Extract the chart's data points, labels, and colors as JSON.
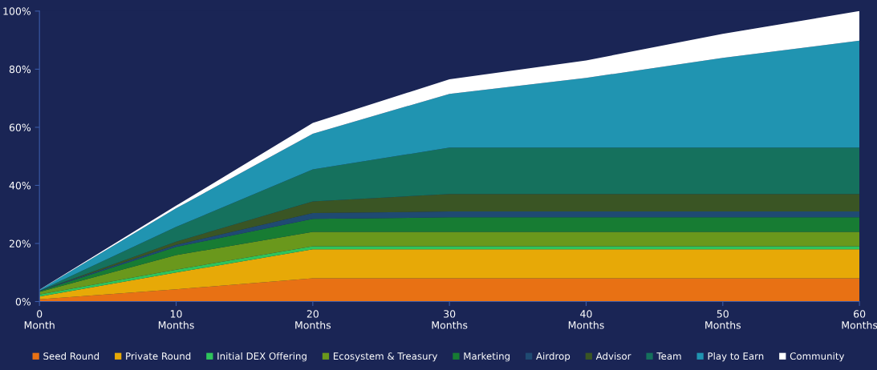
{
  "chart_data": {
    "type": "area",
    "stacked": true,
    "legend": "bottom",
    "grid": false,
    "x": [
      0,
      10,
      20,
      30,
      40,
      50,
      60
    ],
    "xlim": [
      0,
      60
    ],
    "xticks": [
      {
        "value": 0,
        "label": "0\nMonth"
      },
      {
        "value": 10,
        "label": "10\nMonths"
      },
      {
        "value": 20,
        "label": "20\nMonths"
      },
      {
        "value": 30,
        "label": "30\nMonths"
      },
      {
        "value": 40,
        "label": "40\nMonths"
      },
      {
        "value": 50,
        "label": "50\nMonths"
      },
      {
        "value": 60,
        "label": "60\nMonths"
      }
    ],
    "ylim": [
      0,
      100
    ],
    "yticks": [
      {
        "value": 0,
        "label": "0%"
      },
      {
        "value": 20,
        "label": "20%"
      },
      {
        "value": 40,
        "label": "40%"
      },
      {
        "value": 60,
        "label": "60%"
      },
      {
        "value": 80,
        "label": "80%"
      },
      {
        "value": 100,
        "label": "100%"
      }
    ],
    "series": [
      {
        "name": "Seed Round",
        "color": "#e87114",
        "values": [
          0.8,
          4.2,
          8,
          8,
          8,
          8,
          8
        ]
      },
      {
        "name": "Private Round",
        "color": "#e7a907",
        "values": [
          0.9,
          5.8,
          10,
          10,
          10,
          10,
          10
        ]
      },
      {
        "name": "Initial DEX Offering",
        "color": "#2ec45c",
        "values": [
          0.7,
          1,
          1,
          1,
          1,
          1,
          1
        ]
      },
      {
        "name": "Ecosystem & Treasury",
        "color": "#6a981c",
        "values": [
          0.9,
          5,
          5,
          5,
          5,
          5,
          5
        ]
      },
      {
        "name": "Marketing",
        "color": "#177c33",
        "values": [
          0.3,
          2.8,
          4.5,
          5,
          5,
          5,
          5
        ]
      },
      {
        "name": "Airdrop",
        "color": "#1f4a72",
        "values": [
          0.1,
          0.7,
          2,
          2,
          2,
          2,
          2
        ]
      },
      {
        "name": "Advisor",
        "color": "#3a5524",
        "values": [
          0,
          1.1,
          4,
          6,
          6,
          6,
          6
        ]
      },
      {
        "name": "Team",
        "color": "#15715d",
        "values": [
          0,
          5.1,
          11,
          16,
          16,
          16,
          16
        ]
      },
      {
        "name": "Play to Earn",
        "color": "#2094b1",
        "values": [
          0.3,
          6.4,
          12.3,
          18.5,
          24,
          30.9,
          36.8
        ]
      },
      {
        "name": "Community",
        "color": "#ffffff",
        "values": [
          0.1,
          0.9,
          3.7,
          5,
          6,
          8.3,
          10.2
        ]
      }
    ]
  }
}
